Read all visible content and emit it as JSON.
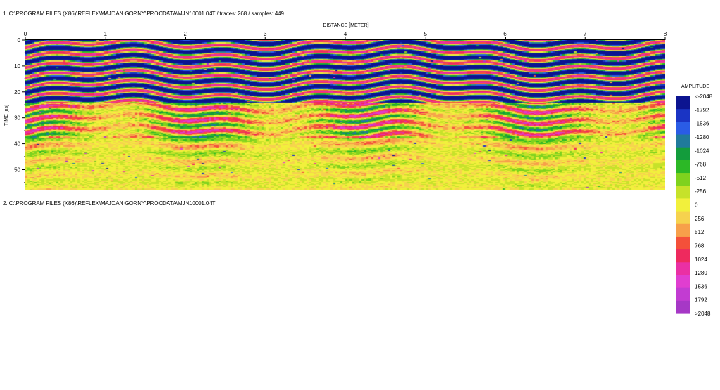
{
  "file_labels": {
    "profile1": "1. C:\\PROGRAM FILES (X86)\\REFLEX\\MAJDAN GORNY\\PROCDATA\\MJN10001.04T  / traces: 268 / samples: 449",
    "profile2": "2. C:\\PROGRAM FILES (X86)\\REFLEX\\MAJDAN GORNY\\PROCDATA\\MJN10001.04T"
  },
  "chart_data": {
    "type": "heatmap",
    "xlabel": "DISTANCE [METER]",
    "ylabel": "TIME [ns]",
    "xlim": [
      0,
      8
    ],
    "ylim": [
      0,
      58
    ],
    "x_ticks": [
      0,
      1,
      2,
      3,
      4,
      5,
      6,
      7,
      8
    ],
    "y_ticks": [
      0,
      10,
      20,
      30,
      40,
      50
    ],
    "traces": 268,
    "samples": 449,
    "colorbar": {
      "title": "AMPLITUDE",
      "labels": [
        "<-2048",
        "-1792",
        "-1536",
        "-1280",
        "-1024",
        "-768",
        "-512",
        "-256",
        "0",
        "256",
        "512",
        "768",
        "1024",
        "1280",
        "1536",
        "1792",
        ">2048"
      ],
      "colors": [
        "#0c1490",
        "#1a34c4",
        "#2a5ce6",
        "#207a9c",
        "#139c3c",
        "#2cb826",
        "#7fd21e",
        "#c6e22a",
        "#f2f03c",
        "#f6d24e",
        "#f7a04a",
        "#f4503a",
        "#ee2a5e",
        "#ea30a4",
        "#e03ed0",
        "#c23cd2",
        "#a638c6"
      ]
    }
  }
}
